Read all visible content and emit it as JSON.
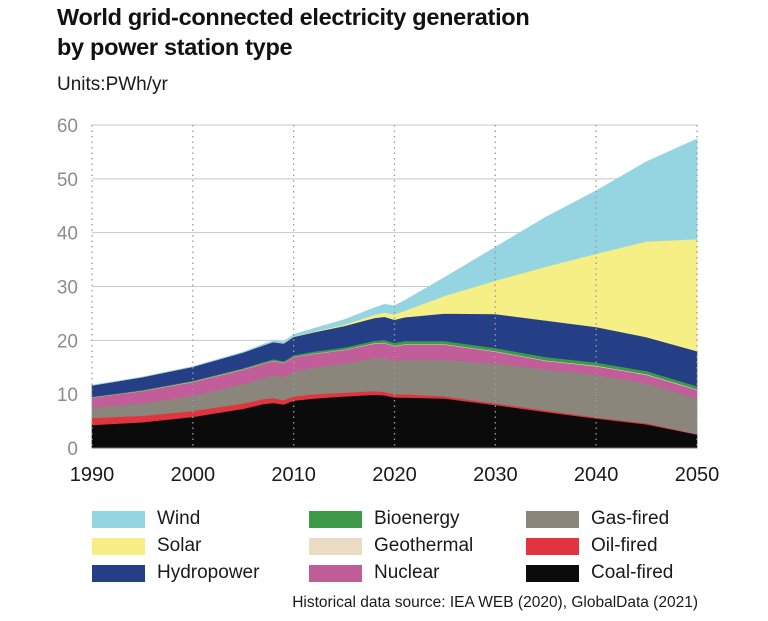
{
  "header": {
    "title_line1": "World grid-connected electricity generation",
    "title_line2": "by power station type",
    "units": "Units:PWh/yr"
  },
  "source": "Historical data source: IEA WEB (2020), GlobalData (2021)",
  "chart_data": {
    "type": "area",
    "stacked": true,
    "title": "World grid-connected electricity generation by power station type",
    "ylabel": "Units:PWh/yr",
    "xlim": [
      1990,
      2050
    ],
    "ylim": [
      0,
      60
    ],
    "x_ticks": [
      1990,
      2000,
      2010,
      2020,
      2030,
      2040,
      2050
    ],
    "y_ticks": [
      0,
      10,
      20,
      30,
      40,
      50,
      60
    ],
    "vertical_dotted_gridlines": [
      1990,
      2000,
      2010,
      2020,
      2030,
      2040,
      2050
    ],
    "horizontal_gridlines": true,
    "legend_position": "bottom",
    "x": [
      1990,
      1995,
      2000,
      2005,
      2007,
      2008,
      2009,
      2010,
      2012,
      2015,
      2018,
      2019,
      2020,
      2021,
      2025,
      2030,
      2035,
      2040,
      2045,
      2050
    ],
    "series": [
      {
        "name": "Coal-fired",
        "color": "#0b0b0b",
        "values": [
          4.3,
          4.8,
          5.8,
          7.3,
          8.2,
          8.4,
          8.1,
          8.8,
          9.2,
          9.6,
          9.9,
          9.8,
          9.4,
          9.4,
          9.2,
          8.0,
          6.7,
          5.5,
          4.4,
          2.5
        ]
      },
      {
        "name": "Oil-fired",
        "color": "#e0353e",
        "values": [
          1.3,
          1.2,
          1.1,
          1.0,
          0.9,
          0.9,
          0.8,
          0.8,
          0.8,
          0.7,
          0.7,
          0.6,
          0.6,
          0.6,
          0.4,
          0.3,
          0.3,
          0.2,
          0.2,
          0.1
        ]
      },
      {
        "name": "Gas-fired",
        "color": "#8a867b",
        "values": [
          1.9,
          2.3,
          2.8,
          3.6,
          3.9,
          4.2,
          4.3,
          4.6,
          5.0,
          5.4,
          6.1,
          6.3,
          6.2,
          6.4,
          6.8,
          7.4,
          7.6,
          7.9,
          7.4,
          6.6
        ]
      },
      {
        "name": "Nuclear",
        "color": "#c15e9a",
        "values": [
          1.9,
          2.3,
          2.6,
          2.7,
          2.7,
          2.7,
          2.6,
          2.7,
          2.5,
          2.5,
          2.7,
          2.8,
          2.7,
          2.8,
          2.8,
          2.2,
          1.6,
          1.6,
          1.6,
          1.6
        ]
      },
      {
        "name": "Geothermal",
        "color": "#eadcc4",
        "values": [
          0.05,
          0.05,
          0.05,
          0.05,
          0.06,
          0.06,
          0.06,
          0.06,
          0.07,
          0.08,
          0.09,
          0.09,
          0.09,
          0.1,
          0.1,
          0.1,
          0.1,
          0.1,
          0.1,
          0.1
        ]
      },
      {
        "name": "Bioenergy",
        "color": "#3d9a48",
        "values": [
          0.1,
          0.12,
          0.15,
          0.2,
          0.23,
          0.25,
          0.27,
          0.3,
          0.35,
          0.4,
          0.45,
          0.5,
          0.55,
          0.6,
          0.6,
          0.6,
          0.6,
          0.6,
          0.6,
          0.6
        ]
      },
      {
        "name": "Hydropower",
        "color": "#253f86",
        "values": [
          2.1,
          2.4,
          2.6,
          2.9,
          3.1,
          3.2,
          3.3,
          3.4,
          3.6,
          4.0,
          4.2,
          4.3,
          4.3,
          4.4,
          5.1,
          6.3,
          6.8,
          6.6,
          6.3,
          6.5
        ]
      },
      {
        "name": "Solar",
        "color": "#f6ef86",
        "values": [
          0,
          0,
          0,
          0,
          0,
          0,
          0.02,
          0.05,
          0.1,
          0.25,
          0.6,
          0.8,
          1.0,
          1.2,
          3.3,
          6.2,
          10.0,
          13.6,
          17.8,
          20.8
        ]
      },
      {
        "name": "Wind",
        "color": "#95d4e1",
        "values": [
          0,
          0,
          0.03,
          0.1,
          0.2,
          0.25,
          0.3,
          0.4,
          0.6,
          0.9,
          1.3,
          1.5,
          1.6,
          1.9,
          3.4,
          6.2,
          9.2,
          11.7,
          14.8,
          18.6
        ]
      }
    ]
  },
  "legend": {
    "items": [
      {
        "label": "Wind",
        "color": "#95d4e1"
      },
      {
        "label": "Solar",
        "color": "#f6ef86"
      },
      {
        "label": "Hydropower",
        "color": "#253f86"
      },
      {
        "label": "Bioenergy",
        "color": "#3d9a48"
      },
      {
        "label": "Geothermal",
        "color": "#eadcc4"
      },
      {
        "label": "Nuclear",
        "color": "#c15e9a"
      },
      {
        "label": "Gas-fired",
        "color": "#8a867b"
      },
      {
        "label": "Oil-fired",
        "color": "#e0353e"
      },
      {
        "label": "Coal-fired",
        "color": "#0b0b0b"
      }
    ]
  }
}
